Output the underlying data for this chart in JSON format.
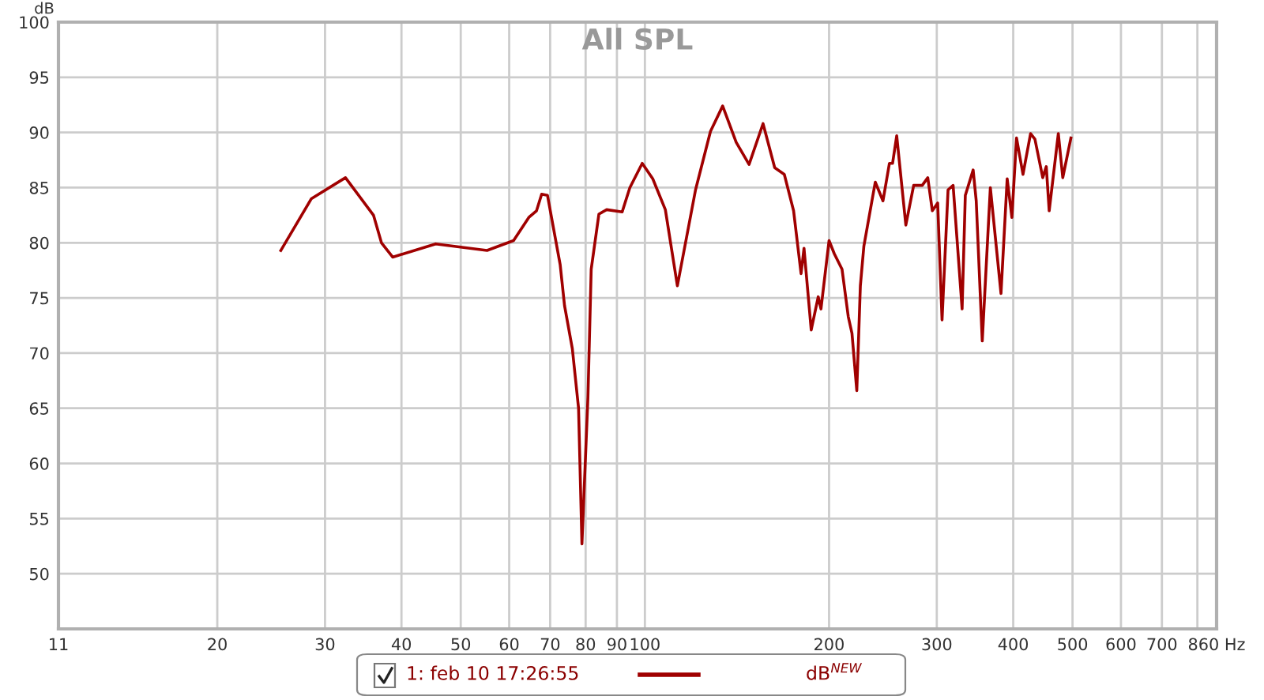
{
  "chart_data": {
    "type": "line",
    "title": "All SPL",
    "ylabel": "dB",
    "log": "x",
    "grid": true,
    "legend": "bottom",
    "marker": "none",
    "line_style": "solid",
    "xlim": [
      11,
      860
    ],
    "ylim": [
      45,
      100
    ],
    "xticks": [
      11,
      20,
      30,
      40,
      50,
      60,
      70,
      80,
      90,
      100,
      200,
      300,
      400,
      500,
      600,
      700,
      {
        "value": 800,
        "label": null
      },
      {
        "value": 860,
        "label": "860 Hz"
      }
    ],
    "yticks": [
      {
        "value": 45,
        "label": null
      },
      50,
      55,
      60,
      65,
      70,
      75,
      80,
      85,
      90,
      95,
      100
    ],
    "annotations": [
      "dB$^{NEW}$"
    ],
    "series": [
      {
        "name": "1: feb 10 17:26:55",
        "color": "#a00000",
        "x": [
          25.4,
          28.5,
          32.4,
          36.0,
          37.1,
          38.7,
          45.5,
          55.2,
          61,
          64.6,
          66.5,
          67.8,
          69.3,
          72.7,
          73.9,
          76.1,
          77.9,
          78.9,
          80.7,
          81.7,
          84.1,
          86.6,
          91.8,
          94.5,
          99,
          103,
          108,
          113,
          121,
          128,
          134,
          141,
          148,
          156,
          163,
          169,
          175,
          180,
          182,
          187,
          192,
          194,
          200,
          204,
          210,
          215,
          218,
          222,
          225,
          228,
          238,
          245,
          251,
          254,
          258,
          267,
          275,
          284,
          290,
          295,
          301,
          306,
          313,
          319,
          330,
          334,
          344,
          348,
          356,
          367,
          382,
          391,
          398,
          405,
          415,
          427,
          434,
          447,
          453,
          458,
          474,
          482,
          497
        ],
        "values": [
          79.3,
          84.0,
          85.9,
          82.5,
          80.0,
          78.7,
          79.9,
          79.3,
          80.2,
          82.3,
          82.9,
          84.4,
          84.3,
          78.0,
          74.3,
          70.4,
          65.0,
          52.7,
          66.0,
          77.6,
          82.6,
          83.0,
          82.8,
          85.0,
          87.2,
          85.8,
          83.0,
          76.1,
          84.8,
          90.1,
          92.4,
          89.1,
          87.1,
          90.8,
          86.8,
          86.2,
          82.9,
          77.2,
          79.5,
          72.1,
          75.1,
          74.0,
          80.2,
          79.0,
          77.6,
          73.3,
          71.8,
          66.6,
          76.1,
          79.7,
          85.5,
          83.8,
          87.2,
          87.2,
          89.7,
          81.6,
          85.2,
          85.2,
          85.9,
          82.9,
          83.6,
          73.0,
          84.8,
          85.2,
          74.0,
          84.3,
          86.6,
          83.8,
          71.1,
          85.0,
          75.4,
          85.8,
          82.3,
          89.5,
          86.2,
          89.9,
          89.4,
          85.9,
          86.9,
          82.9,
          89.9,
          85.9,
          89.5
        ]
      }
    ]
  }
}
